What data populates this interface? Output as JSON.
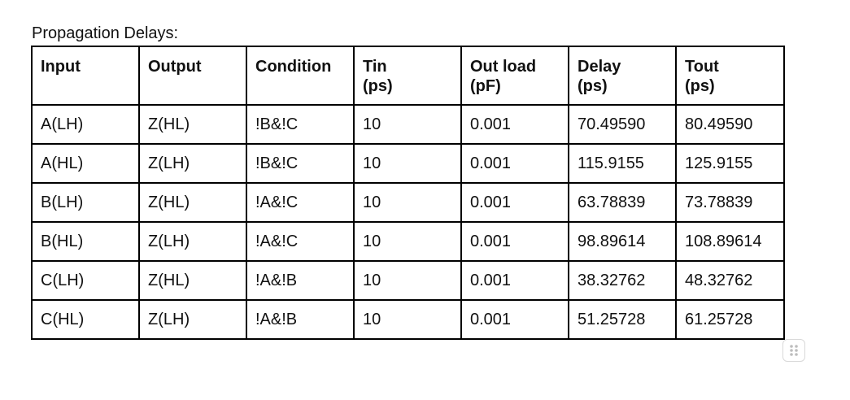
{
  "caption": "Propagation Delays:",
  "table": {
    "headers": [
      [
        "Input"
      ],
      [
        "Output"
      ],
      [
        "Condition"
      ],
      [
        "Tin",
        "(ps)"
      ],
      [
        "Out load",
        "(pF)"
      ],
      [
        "Delay",
        "(ps)"
      ],
      [
        "Tout",
        "(ps)"
      ]
    ],
    "rows": [
      [
        "A(LH)",
        "Z(HL)",
        "!B&!C",
        "10",
        "0.001",
        "70.49590",
        "80.49590"
      ],
      [
        "A(HL)",
        "Z(LH)",
        "!B&!C",
        "10",
        "0.001",
        "115.9155",
        "125.9155"
      ],
      [
        "B(LH)",
        "Z(HL)",
        "!A&!C",
        "10",
        "0.001",
        "63.78839",
        "73.78839"
      ],
      [
        "B(HL)",
        "Z(LH)",
        "!A&!C",
        "10",
        "0.001",
        "98.89614",
        "108.89614"
      ],
      [
        "C(LH)",
        "Z(HL)",
        "!A&!B",
        "10",
        "0.001",
        "38.32762",
        "48.32762"
      ],
      [
        "C(HL)",
        "Z(LH)",
        "!A&!B",
        "10",
        "0.001",
        "51.25728",
        "61.25728"
      ]
    ]
  },
  "handle": {
    "icon": "drag-handle-icon",
    "color": "#bdbdbd"
  }
}
